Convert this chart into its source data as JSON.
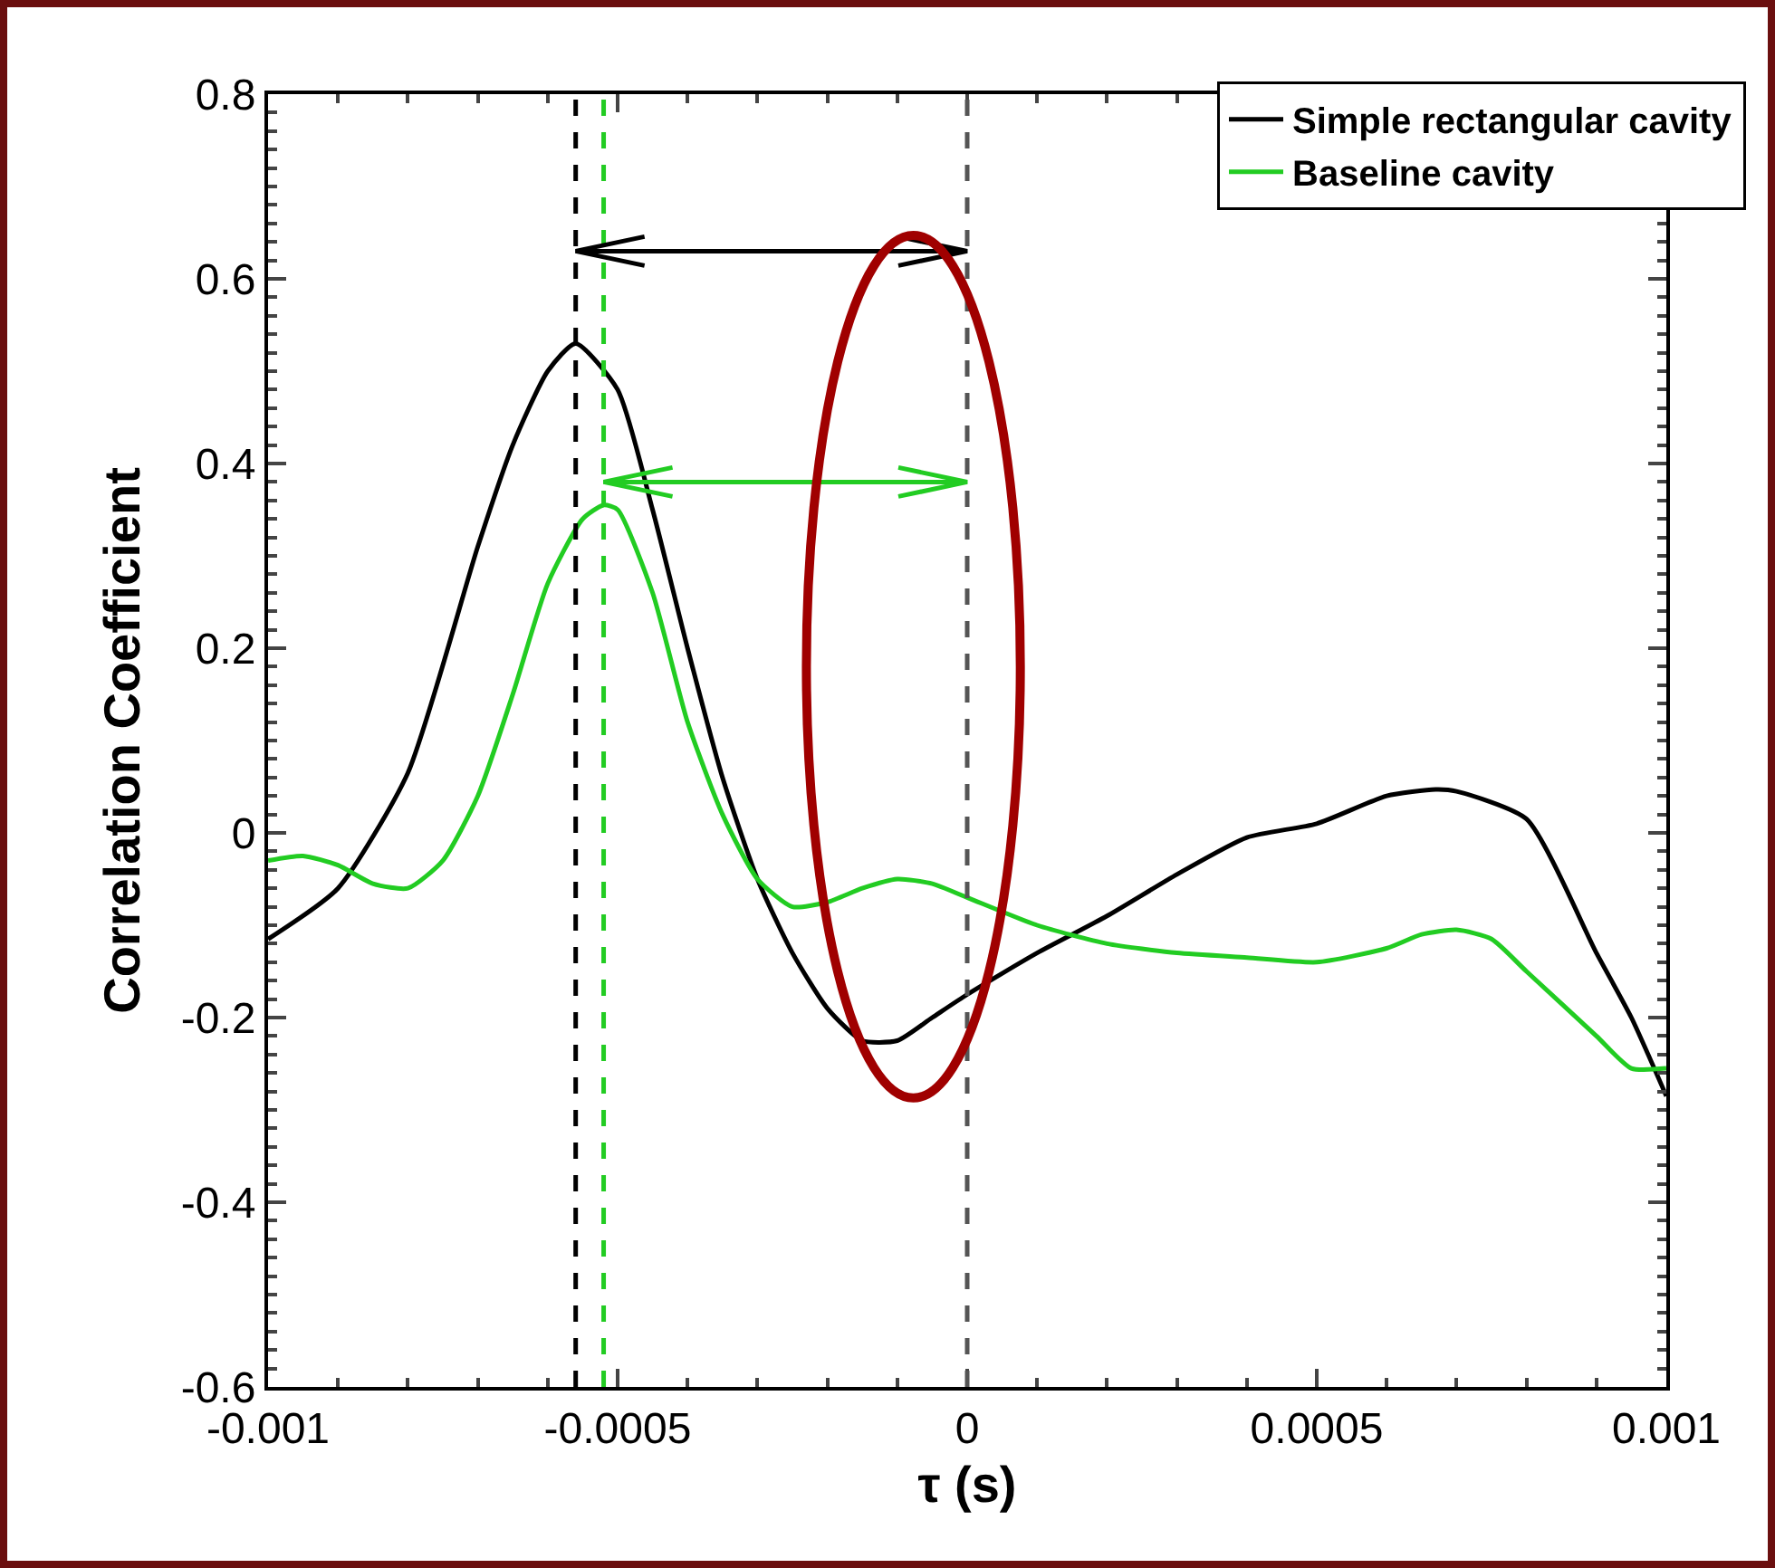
{
  "chart_data": {
    "type": "line",
    "xlabel": "τ (s)",
    "ylabel": "Correlation Coefficient",
    "xlim": [
      -0.001,
      0.001
    ],
    "xticks": [
      -0.001,
      -0.0005,
      0,
      0.0005,
      0.001
    ],
    "ylim": [
      -0.6,
      0.8
    ],
    "yticks": [
      -0.6,
      -0.4,
      -0.2,
      0,
      0.2,
      0.4,
      0.6,
      0.8
    ],
    "grid": false,
    "legend": "top right",
    "marker": "none",
    "line_style": "solid",
    "series": [
      {
        "name": "Simple rectangular cavity",
        "color": "#000000",
        "x": [
          -0.001,
          -0.0009,
          -0.0008,
          -0.0007,
          -0.00065,
          -0.0006,
          -0.00056,
          -0.0005,
          -0.00045,
          -0.0004,
          -0.00035,
          -0.0003,
          -0.00025,
          -0.0002,
          -0.00015,
          -0.0001,
          -5e-05,
          0,
          0.0001,
          0.0002,
          0.0003,
          0.0004,
          0.0005,
          0.0006,
          0.00067,
          0.0007,
          0.0008,
          0.0009,
          0.00095,
          0.001
        ],
        "values": [
          -0.115,
          -0.06,
          0.065,
          0.31,
          0.42,
          0.5,
          0.53,
          0.48,
          0.35,
          0.2,
          0.06,
          -0.05,
          -0.13,
          -0.19,
          -0.225,
          -0.225,
          -0.2,
          -0.175,
          -0.13,
          -0.09,
          -0.045,
          -0.005,
          0.01,
          0.04,
          0.047,
          0.045,
          0.015,
          -0.13,
          -0.2,
          -0.285
        ]
      },
      {
        "name": "Baseline cavity",
        "color": "#22cc22",
        "x": [
          -0.001,
          -0.00095,
          -0.0009,
          -0.00085,
          -0.0008,
          -0.00075,
          -0.0007,
          -0.00065,
          -0.0006,
          -0.00055,
          -0.00052,
          -0.0005,
          -0.00045,
          -0.0004,
          -0.00035,
          -0.0003,
          -0.00025,
          -0.0002,
          -0.00015,
          -0.0001,
          -5e-05,
          0,
          0.0001,
          0.0002,
          0.0003,
          0.0004,
          0.0005,
          0.0006,
          0.00065,
          0.0007,
          0.00075,
          0.0008,
          0.0009,
          0.00095,
          0.001
        ],
        "values": [
          -0.03,
          -0.025,
          -0.035,
          -0.055,
          -0.06,
          -0.03,
          0.04,
          0.15,
          0.27,
          0.34,
          0.355,
          0.35,
          0.26,
          0.12,
          0.02,
          -0.05,
          -0.08,
          -0.075,
          -0.06,
          -0.05,
          -0.055,
          -0.07,
          -0.1,
          -0.12,
          -0.13,
          -0.135,
          -0.14,
          -0.125,
          -0.11,
          -0.105,
          -0.115,
          -0.15,
          -0.22,
          -0.255,
          -0.255
        ]
      }
    ],
    "ref_lines": [
      {
        "axis": "x",
        "value": -0.00056,
        "color": "#000000",
        "line_style": "dashed"
      },
      {
        "axis": "x",
        "value": -0.00052,
        "color": "#22cc22",
        "line_style": "dashed"
      },
      {
        "axis": "x",
        "value": 0,
        "color": "#555555",
        "line_style": "dashed"
      }
    ]
  }
}
